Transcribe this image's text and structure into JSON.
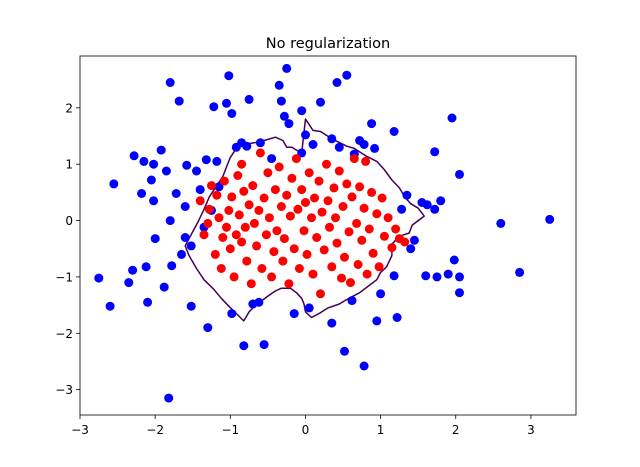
{
  "chart_data": {
    "type": "scatter",
    "title": "No regularization",
    "xlabel": "",
    "ylabel": "",
    "xlim": [
      -3.0,
      3.6
    ],
    "ylim": [
      -3.45,
      2.92
    ],
    "x_ticks": [
      -3,
      -2,
      -1,
      0,
      1,
      2,
      3
    ],
    "y_ticks": [
      -3,
      -2,
      -1,
      0,
      1,
      2
    ],
    "x_tick_labels": [
      "−3",
      "−2",
      "−1",
      "0",
      "1",
      "2",
      "3"
    ],
    "y_tick_labels": [
      "−3",
      "−2",
      "−1",
      "0",
      "1",
      "2"
    ],
    "grid": false,
    "legend": "none",
    "colors": {
      "class_0": "#0000ff",
      "class_1": "#ff0000",
      "boundary": "#440154"
    },
    "series": [
      {
        "color": "#0000ff",
        "points": [
          [
            -2.75,
            -1.02
          ],
          [
            -2.6,
            -1.52
          ],
          [
            -2.55,
            0.65
          ],
          [
            -2.35,
            -1.1
          ],
          [
            -2.3,
            -0.88
          ],
          [
            -2.28,
            1.15
          ],
          [
            -2.18,
            0.48
          ],
          [
            -2.15,
            1.05
          ],
          [
            -2.12,
            -0.82
          ],
          [
            -2.1,
            -1.45
          ],
          [
            -2.05,
            0.72
          ],
          [
            -2.02,
            0.35
          ],
          [
            -2.02,
            1.0
          ],
          [
            -2.0,
            -0.32
          ],
          [
            -1.92,
            1.25
          ],
          [
            -1.88,
            -1.18
          ],
          [
            -1.85,
            0.88
          ],
          [
            -1.82,
            -3.15
          ],
          [
            -1.8,
            2.45
          ],
          [
            -1.8,
            0.0
          ],
          [
            -1.78,
            -0.8
          ],
          [
            -1.72,
            0.48
          ],
          [
            -1.68,
            2.12
          ],
          [
            -1.65,
            -0.6
          ],
          [
            -1.6,
            0.25
          ],
          [
            -1.6,
            -0.3
          ],
          [
            -1.58,
            0.98
          ],
          [
            -1.52,
            -0.45
          ],
          [
            -1.52,
            -1.52
          ],
          [
            -1.45,
            0.88
          ],
          [
            -1.4,
            0.55
          ],
          [
            -1.35,
            -0.12
          ],
          [
            -1.32,
            1.08
          ],
          [
            -1.3,
            -1.9
          ],
          [
            -1.25,
            0.18
          ],
          [
            -1.22,
            2.02
          ],
          [
            -1.18,
            1.05
          ],
          [
            -1.15,
            0.6
          ],
          [
            -1.05,
            2.08
          ],
          [
            -1.02,
            2.57
          ],
          [
            -0.98,
            1.9
          ],
          [
            -0.98,
            -1.65
          ],
          [
            -0.92,
            1.3
          ],
          [
            -0.85,
            1.38
          ],
          [
            -0.82,
            -2.22
          ],
          [
            -0.78,
            1.32
          ],
          [
            -0.75,
            2.15
          ],
          [
            -0.7,
            -1.48
          ],
          [
            -0.62,
            -1.45
          ],
          [
            -0.6,
            1.38
          ],
          [
            -0.55,
            -2.2
          ],
          [
            -0.45,
            1.1
          ],
          [
            -0.35,
            2.4
          ],
          [
            -0.32,
            2.12
          ],
          [
            -0.28,
            1.85
          ],
          [
            -0.25,
            2.7
          ],
          [
            -0.22,
            1.72
          ],
          [
            -0.15,
            -1.65
          ],
          [
            -0.05,
            1.2
          ],
          [
            -0.05,
            1.95
          ],
          [
            0.0,
            1.52
          ],
          [
            0.05,
            -1.55
          ],
          [
            0.1,
            1.35
          ],
          [
            0.2,
            2.1
          ],
          [
            0.35,
            1.45
          ],
          [
            0.35,
            -1.82
          ],
          [
            0.42,
            2.45
          ],
          [
            0.45,
            1.3
          ],
          [
            0.52,
            -2.32
          ],
          [
            0.55,
            2.58
          ],
          [
            0.62,
            -1.42
          ],
          [
            0.65,
            1.18
          ],
          [
            0.72,
            1.42
          ],
          [
            0.78,
            1.35
          ],
          [
            0.78,
            -2.58
          ],
          [
            0.88,
            1.72
          ],
          [
            0.92,
            1.28
          ],
          [
            0.95,
            -1.78
          ],
          [
            1.0,
            -1.3
          ],
          [
            1.18,
            1.58
          ],
          [
            1.18,
            -0.98
          ],
          [
            1.22,
            -1.72
          ],
          [
            1.28,
            0.2
          ],
          [
            1.35,
            0.45
          ],
          [
            1.4,
            -0.5
          ],
          [
            1.45,
            -0.35
          ],
          [
            1.55,
            0.32
          ],
          [
            1.6,
            -0.98
          ],
          [
            1.62,
            0.28
          ],
          [
            1.72,
            0.2
          ],
          [
            1.72,
            1.22
          ],
          [
            1.75,
            -1.0
          ],
          [
            1.8,
            0.35
          ],
          [
            1.9,
            -0.95
          ],
          [
            1.95,
            1.82
          ],
          [
            1.98,
            -0.7
          ],
          [
            2.05,
            -1.0
          ],
          [
            2.05,
            0.82
          ],
          [
            2.05,
            -1.28
          ],
          [
            2.6,
            -0.05
          ],
          [
            2.85,
            -0.92
          ],
          [
            3.25,
            0.02
          ]
        ]
      },
      {
        "color": "#ff0000",
        "points": [
          [
            -1.4,
            0.35
          ],
          [
            -1.35,
            -0.25
          ],
          [
            -1.3,
            -0.05
          ],
          [
            -1.28,
            0.2
          ],
          [
            -1.25,
            0.62
          ],
          [
            -1.2,
            -0.6
          ],
          [
            -1.18,
            0.45
          ],
          [
            -1.15,
            0.05
          ],
          [
            -1.12,
            -0.85
          ],
          [
            -1.1,
            -0.3
          ],
          [
            -1.08,
            0.7
          ],
          [
            -1.05,
            -0.12
          ],
          [
            -1.02,
            0.18
          ],
          [
            -1.0,
            -0.5
          ],
          [
            -0.98,
            0.42
          ],
          [
            -0.95,
            -1.0
          ],
          [
            -0.92,
            -0.25
          ],
          [
            -0.9,
            0.8
          ],
          [
            -0.88,
            0.1
          ],
          [
            -0.85,
            -0.38
          ],
          [
            -0.85,
            1.0
          ],
          [
            -0.82,
            0.52
          ],
          [
            -0.8,
            -0.12
          ],
          [
            -0.78,
            -0.72
          ],
          [
            -0.75,
            0.28
          ],
          [
            -0.72,
            -1.12
          ],
          [
            -0.7,
            0.62
          ],
          [
            -0.68,
            -0.05
          ],
          [
            -0.65,
            -0.45
          ],
          [
            -0.62,
            0.18
          ],
          [
            -0.6,
            1.2
          ],
          [
            -0.58,
            -0.85
          ],
          [
            -0.55,
            0.4
          ],
          [
            -0.52,
            -0.25
          ],
          [
            -0.5,
            0.85
          ],
          [
            -0.48,
            0.05
          ],
          [
            -0.45,
            -1.0
          ],
          [
            -0.42,
            -0.55
          ],
          [
            -0.4,
            0.55
          ],
          [
            -0.38,
            -0.18
          ],
          [
            -0.35,
            0.95
          ],
          [
            -0.32,
            0.25
          ],
          [
            -0.3,
            -0.72
          ],
          [
            -0.28,
            -0.32
          ],
          [
            -0.25,
            0.45
          ],
          [
            -0.22,
            -1.12
          ],
          [
            -0.2,
            0.08
          ],
          [
            -0.18,
            0.75
          ],
          [
            -0.15,
            -0.5
          ],
          [
            -0.12,
            1.1
          ],
          [
            -0.1,
            0.2
          ],
          [
            -0.08,
            -0.85
          ],
          [
            -0.05,
            0.55
          ],
          [
            -0.02,
            -0.18
          ],
          [
            0.0,
            0.32
          ],
          [
            0.02,
            -0.6
          ],
          [
            0.05,
            0.85
          ],
          [
            0.08,
            0.05
          ],
          [
            0.1,
            -0.95
          ],
          [
            0.12,
            0.4
          ],
          [
            0.15,
            -0.3
          ],
          [
            0.18,
            0.7
          ],
          [
            0.2,
            -1.3
          ],
          [
            0.22,
            0.15
          ],
          [
            0.25,
            -0.52
          ],
          [
            0.28,
            1.0
          ],
          [
            0.3,
            0.35
          ],
          [
            0.32,
            -0.12
          ],
          [
            0.35,
            -0.82
          ],
          [
            0.38,
            0.58
          ],
          [
            0.4,
            0.05
          ],
          [
            0.42,
            -0.4
          ],
          [
            0.45,
            0.88
          ],
          [
            0.48,
            -1.02
          ],
          [
            0.5,
            0.25
          ],
          [
            0.52,
            -0.65
          ],
          [
            0.55,
            0.65
          ],
          [
            0.58,
            -0.2
          ],
          [
            0.6,
            -1.1
          ],
          [
            0.62,
            0.42
          ],
          [
            0.65,
            1.1
          ],
          [
            0.68,
            -0.05
          ],
          [
            0.7,
            -0.78
          ],
          [
            0.72,
            0.6
          ],
          [
            0.75,
            -0.35
          ],
          [
            0.78,
            0.22
          ],
          [
            0.8,
            1.05
          ],
          [
            0.82,
            -0.95
          ],
          [
            0.85,
            -0.15
          ],
          [
            0.88,
            0.5
          ],
          [
            0.9,
            -0.58
          ],
          [
            0.95,
            0.12
          ],
          [
            0.98,
            -0.82
          ],
          [
            1.02,
            0.4
          ],
          [
            1.05,
            -0.28
          ],
          [
            1.1,
            0.05
          ],
          [
            1.15,
            -0.48
          ],
          [
            1.2,
            -0.15
          ],
          [
            1.25,
            -0.32
          ],
          [
            1.32,
            -0.38
          ]
        ]
      }
    ],
    "boundary": [
      [
        0.0,
        1.8
      ],
      [
        0.1,
        1.6
      ],
      [
        0.2,
        1.58
      ],
      [
        0.35,
        1.45
      ],
      [
        0.55,
        1.32
      ],
      [
        0.65,
        1.28
      ],
      [
        0.8,
        1.15
      ],
      [
        0.95,
        1.05
      ],
      [
        1.05,
        0.9
      ],
      [
        1.15,
        0.72
      ],
      [
        1.25,
        0.58
      ],
      [
        1.32,
        0.42
      ],
      [
        1.4,
        0.3
      ],
      [
        1.5,
        0.22
      ],
      [
        1.58,
        0.08
      ],
      [
        1.5,
        0.0
      ],
      [
        1.42,
        -0.08
      ],
      [
        1.38,
        -0.22
      ],
      [
        1.25,
        -0.28
      ],
      [
        1.15,
        -0.42
      ],
      [
        1.15,
        -0.62
      ],
      [
        1.08,
        -0.82
      ],
      [
        1.0,
        -0.92
      ],
      [
        0.95,
        -1.05
      ],
      [
        0.85,
        -1.15
      ],
      [
        0.72,
        -1.28
      ],
      [
        0.55,
        -1.4
      ],
      [
        0.45,
        -1.48
      ],
      [
        0.3,
        -1.55
      ],
      [
        0.18,
        -1.65
      ],
      [
        0.08,
        -1.72
      ],
      [
        0.0,
        -1.62
      ],
      [
        -0.02,
        -1.48
      ],
      [
        -0.05,
        -1.38
      ],
      [
        -0.12,
        -1.28
      ],
      [
        -0.2,
        -1.2
      ],
      [
        -0.32,
        -1.2
      ],
      [
        -0.4,
        -1.25
      ],
      [
        -0.48,
        -1.32
      ],
      [
        -0.58,
        -1.42
      ],
      [
        -0.68,
        -1.52
      ],
      [
        -0.75,
        -1.62
      ],
      [
        -0.82,
        -1.78
      ],
      [
        -0.92,
        -1.65
      ],
      [
        -1.02,
        -1.52
      ],
      [
        -1.12,
        -1.38
      ],
      [
        -1.22,
        -1.22
      ],
      [
        -1.35,
        -1.05
      ],
      [
        -1.45,
        -0.85
      ],
      [
        -1.55,
        -0.62
      ],
      [
        -1.6,
        -0.45
      ],
      [
        -1.55,
        -0.32
      ],
      [
        -1.48,
        -0.15
      ],
      [
        -1.42,
        0.0
      ],
      [
        -1.35,
        0.2
      ],
      [
        -1.28,
        0.42
      ],
      [
        -1.18,
        0.62
      ],
      [
        -1.1,
        0.78
      ],
      [
        -1.05,
        0.95
      ],
      [
        -1.0,
        1.12
      ],
      [
        -0.92,
        1.28
      ],
      [
        -0.82,
        1.35
      ],
      [
        -0.68,
        1.38
      ],
      [
        -0.55,
        1.42
      ],
      [
        -0.4,
        1.48
      ],
      [
        -0.3,
        1.42
      ],
      [
        -0.25,
        1.3
      ],
      [
        -0.18,
        1.3
      ],
      [
        -0.12,
        1.25
      ],
      [
        -0.05,
        1.2
      ],
      [
        0.0,
        1.8
      ]
    ]
  }
}
